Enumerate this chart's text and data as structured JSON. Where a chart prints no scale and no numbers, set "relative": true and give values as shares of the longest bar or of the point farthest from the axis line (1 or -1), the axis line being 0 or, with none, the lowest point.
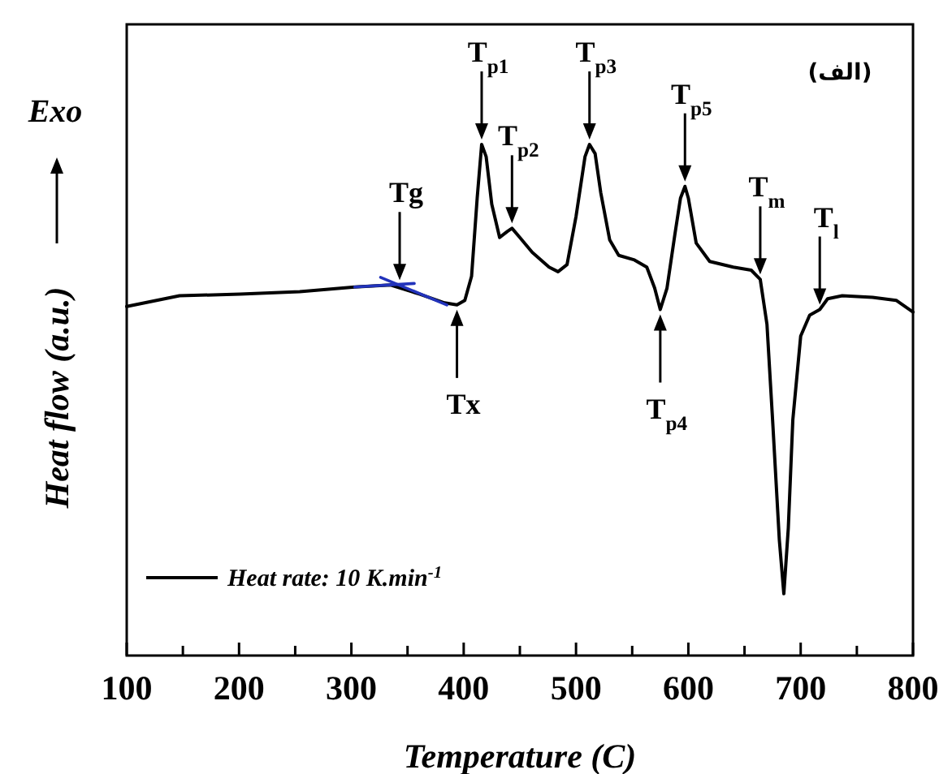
{
  "chart_data": {
    "type": "line",
    "relative": true,
    "xlabel": "Temperature (C)",
    "ylabel": "Heat flow (a.u.)",
    "xlim": [
      100,
      800
    ],
    "xticks": [
      100,
      {
        "value": 150,
        "label": null
      },
      200,
      {
        "value": 250,
        "label": null
      },
      300,
      {
        "value": 350,
        "label": null
      },
      400,
      {
        "value": 450,
        "label": null
      },
      500,
      {
        "value": 550,
        "label": null
      },
      600,
      {
        "value": 650,
        "label": null
      },
      700,
      {
        "value": 750,
        "label": null
      },
      800
    ],
    "grid": false,
    "legend": "bottom left",
    "line_style": "solid",
    "marker": "none",
    "series": [
      {
        "name": "Heat rate: 10 K.min$^{-1}$",
        "color": "#000000",
        "x": [
          100,
          147,
          201,
          254,
          303,
          335,
          361,
          383,
          394,
          401,
          407,
          412,
          416,
          420,
          425,
          432,
          439,
          443,
          450,
          461,
          476,
          484,
          492,
          500,
          508,
          512,
          517,
          522,
          530,
          538,
          552,
          563,
          570,
          575,
          581,
          588,
          593,
          597,
          600,
          607,
          619,
          640,
          656,
          664,
          670,
          675,
          681,
          685,
          689,
          693,
          700,
          708,
          717,
          724,
          737,
          764,
          785,
          800
        ],
        "values": [
          0.683,
          0.704,
          0.707,
          0.712,
          0.721,
          0.725,
          0.707,
          0.69,
          0.686,
          0.695,
          0.742,
          0.895,
          1.0,
          0.976,
          0.883,
          0.818,
          0.83,
          0.836,
          0.818,
          0.789,
          0.76,
          0.751,
          0.765,
          0.859,
          0.976,
          1.0,
          0.982,
          0.906,
          0.813,
          0.783,
          0.774,
          0.76,
          0.719,
          0.677,
          0.719,
          0.824,
          0.895,
          0.918,
          0.895,
          0.807,
          0.771,
          0.76,
          0.754,
          0.736,
          0.648,
          0.461,
          0.226,
          0.121,
          0.25,
          0.461,
          0.625,
          0.666,
          0.677,
          0.698,
          0.704,
          0.701,
          0.695,
          0.672
        ]
      },
      {
        "color": "#2233bb",
        "x": [
          303,
          356
        ],
        "values": [
          0.721,
          0.728
        ]
      },
      {
        "color": "#2233bb",
        "x": [
          326,
          385
        ],
        "values": [
          0.74,
          0.686
        ]
      }
    ],
    "annotations": [
      {
        "text": "Tg",
        "x": 343,
        "y": 0.725
      },
      {
        "text": "Tx",
        "x": 394,
        "y": 0.686
      },
      {
        "text": "T$_{p1}$",
        "x": 416,
        "y": 1.0
      },
      {
        "text": "T$_{p2}$",
        "x": 443,
        "y": 0.836
      },
      {
        "text": "T$_{p3}$",
        "x": 512,
        "y": 1.0
      },
      {
        "text": "T$_{p4}$",
        "x": 575,
        "y": 0.677
      },
      {
        "text": "T$_{p5}$",
        "x": 597,
        "y": 0.918
      },
      {
        "text": "T$_{m}$",
        "x": 664,
        "y": 0.736
      },
      {
        "text": "T$_{l}$",
        "x": 717,
        "y": 0.677
      },
      "(الف)",
      "Exo"
    ]
  }
}
